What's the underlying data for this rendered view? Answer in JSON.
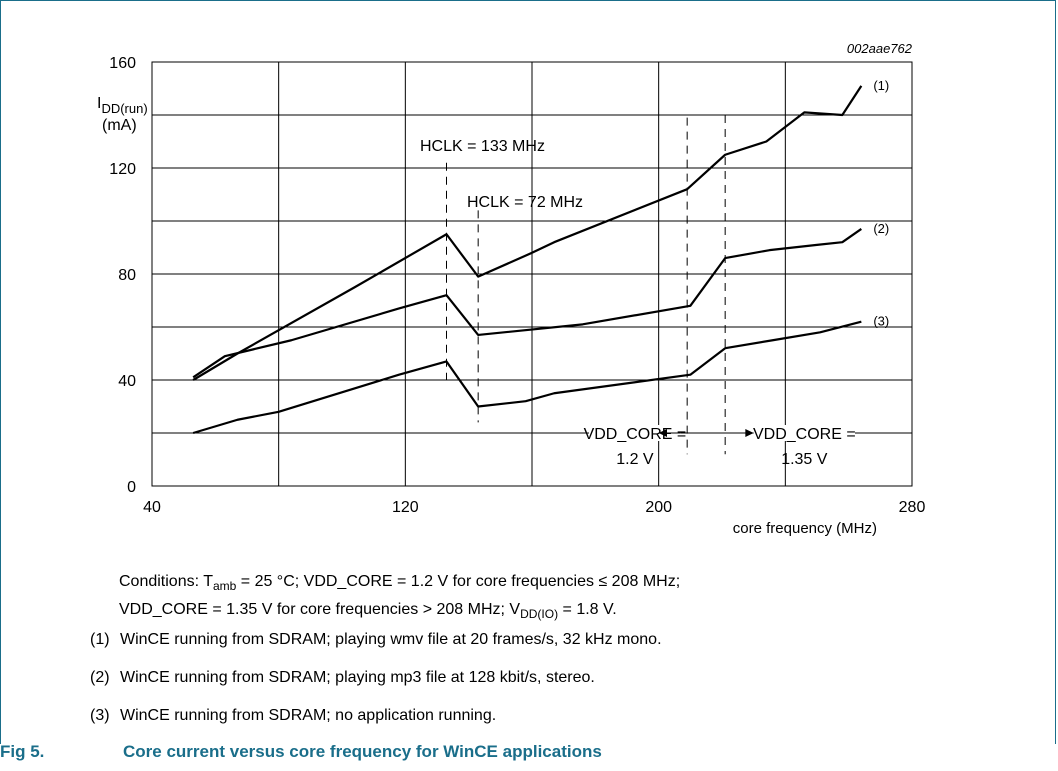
{
  "chart_data": {
    "type": "line",
    "id_label": "002aae762",
    "ylabel_main": "I",
    "ylabel_sub": "DD(run)",
    "ylabel_unit": "(mA)",
    "xlabel": "core frequency (MHz)",
    "xlim": [
      40,
      280
    ],
    "ylim": [
      0,
      160
    ],
    "xticks": [
      "40",
      "120",
      "200",
      "280"
    ],
    "yticks": [
      "0",
      "40",
      "80",
      "120",
      "160"
    ],
    "series": [
      {
        "name": "(1)",
        "x": [
          53,
          67,
          104,
          133,
          143,
          160,
          167,
          209,
          221,
          234,
          246,
          258,
          264
        ],
        "y": [
          40,
          50,
          75,
          95,
          79,
          88,
          92,
          112,
          125,
          130,
          141,
          140,
          151
        ]
      },
      {
        "name": "(2)",
        "x": [
          53,
          63,
          84,
          118,
          133,
          143,
          176,
          210,
          221,
          235,
          250,
          258,
          264
        ],
        "y": [
          41,
          49,
          55,
          67,
          72,
          57,
          61,
          68,
          86,
          89,
          91,
          92,
          97
        ]
      },
      {
        "name": "(3)",
        "x": [
          53,
          67,
          80,
          118,
          133,
          143,
          158,
          167,
          210,
          221,
          236,
          251,
          264
        ],
        "y": [
          20,
          25,
          28,
          42,
          47,
          30,
          32,
          35,
          42,
          52,
          55,
          58,
          62
        ]
      }
    ],
    "annotations": {
      "hclk133": "HCLK = 133 MHz",
      "hclk72": "HCLK = 72 MHz",
      "vdd12_line1": "VDD_CORE =",
      "vdd12_line2": "1.2 V",
      "vdd135_line1": "VDD_CORE =",
      "vdd135_line2": "1.35 V"
    }
  },
  "conditions": {
    "l1a": "Conditions: T",
    "l1b": "amb",
    "l1c": " = 25 °C; VDD_CORE = 1.2 V for core frequencies ≤ 208 MHz;",
    "l2a": "VDD_CORE = 1.35 V for core frequencies > 208 MHz; V",
    "l2b": "DD(IO)",
    "l2c": " = 1.8 V."
  },
  "notes": [
    {
      "num": "(1)",
      "text": "WinCE running from SDRAM; playing wmv file at 20 frames/s, 32 kHz mono."
    },
    {
      "num": "(2)",
      "text": "WinCE running from SDRAM; playing mp3 file at 128 kbit/s, stereo."
    },
    {
      "num": "(3)",
      "text": "WinCE running from SDRAM; no application running."
    }
  ],
  "caption": {
    "fig": "Fig 5.",
    "title": "Core current versus core frequency for WinCE applications"
  }
}
